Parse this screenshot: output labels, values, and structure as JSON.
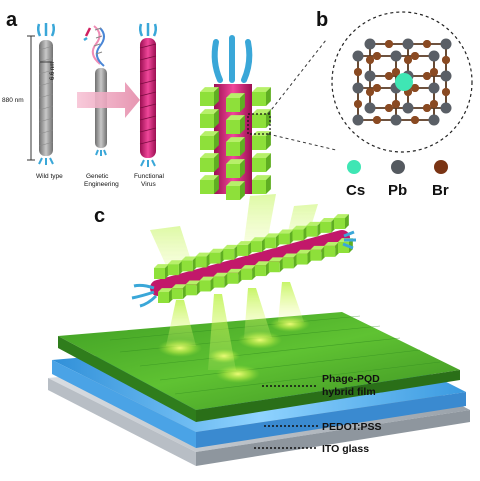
{
  "panels": {
    "a": "a",
    "b": "b",
    "c": "c"
  },
  "panel_a": {
    "dim_length": "880 nm",
    "dim_width": "6.6 nm",
    "stages": [
      "Wild type",
      "Genetic Engineering",
      "Functional Virus"
    ]
  },
  "panel_b": {
    "legend": [
      {
        "symbol": "Cs",
        "color": "#3fe6b4"
      },
      {
        "symbol": "Pb",
        "color": "#555a60"
      },
      {
        "symbol": "Br",
        "color": "#7a3414"
      }
    ]
  },
  "panel_c": {
    "layers": [
      "Phage-PQD hybrid film",
      "PEDOT:PSS",
      "ITO glass"
    ]
  },
  "colors": {
    "phage_gray": "#9a9a9a",
    "phage_pink": "#d81b74",
    "tail_blue": "#3aa7d8",
    "cube_green": "#8ee03a",
    "film_green": "#4fb82a",
    "pedot_blue": "#5fb6f0",
    "emission_yellow": "#e8f55a"
  }
}
